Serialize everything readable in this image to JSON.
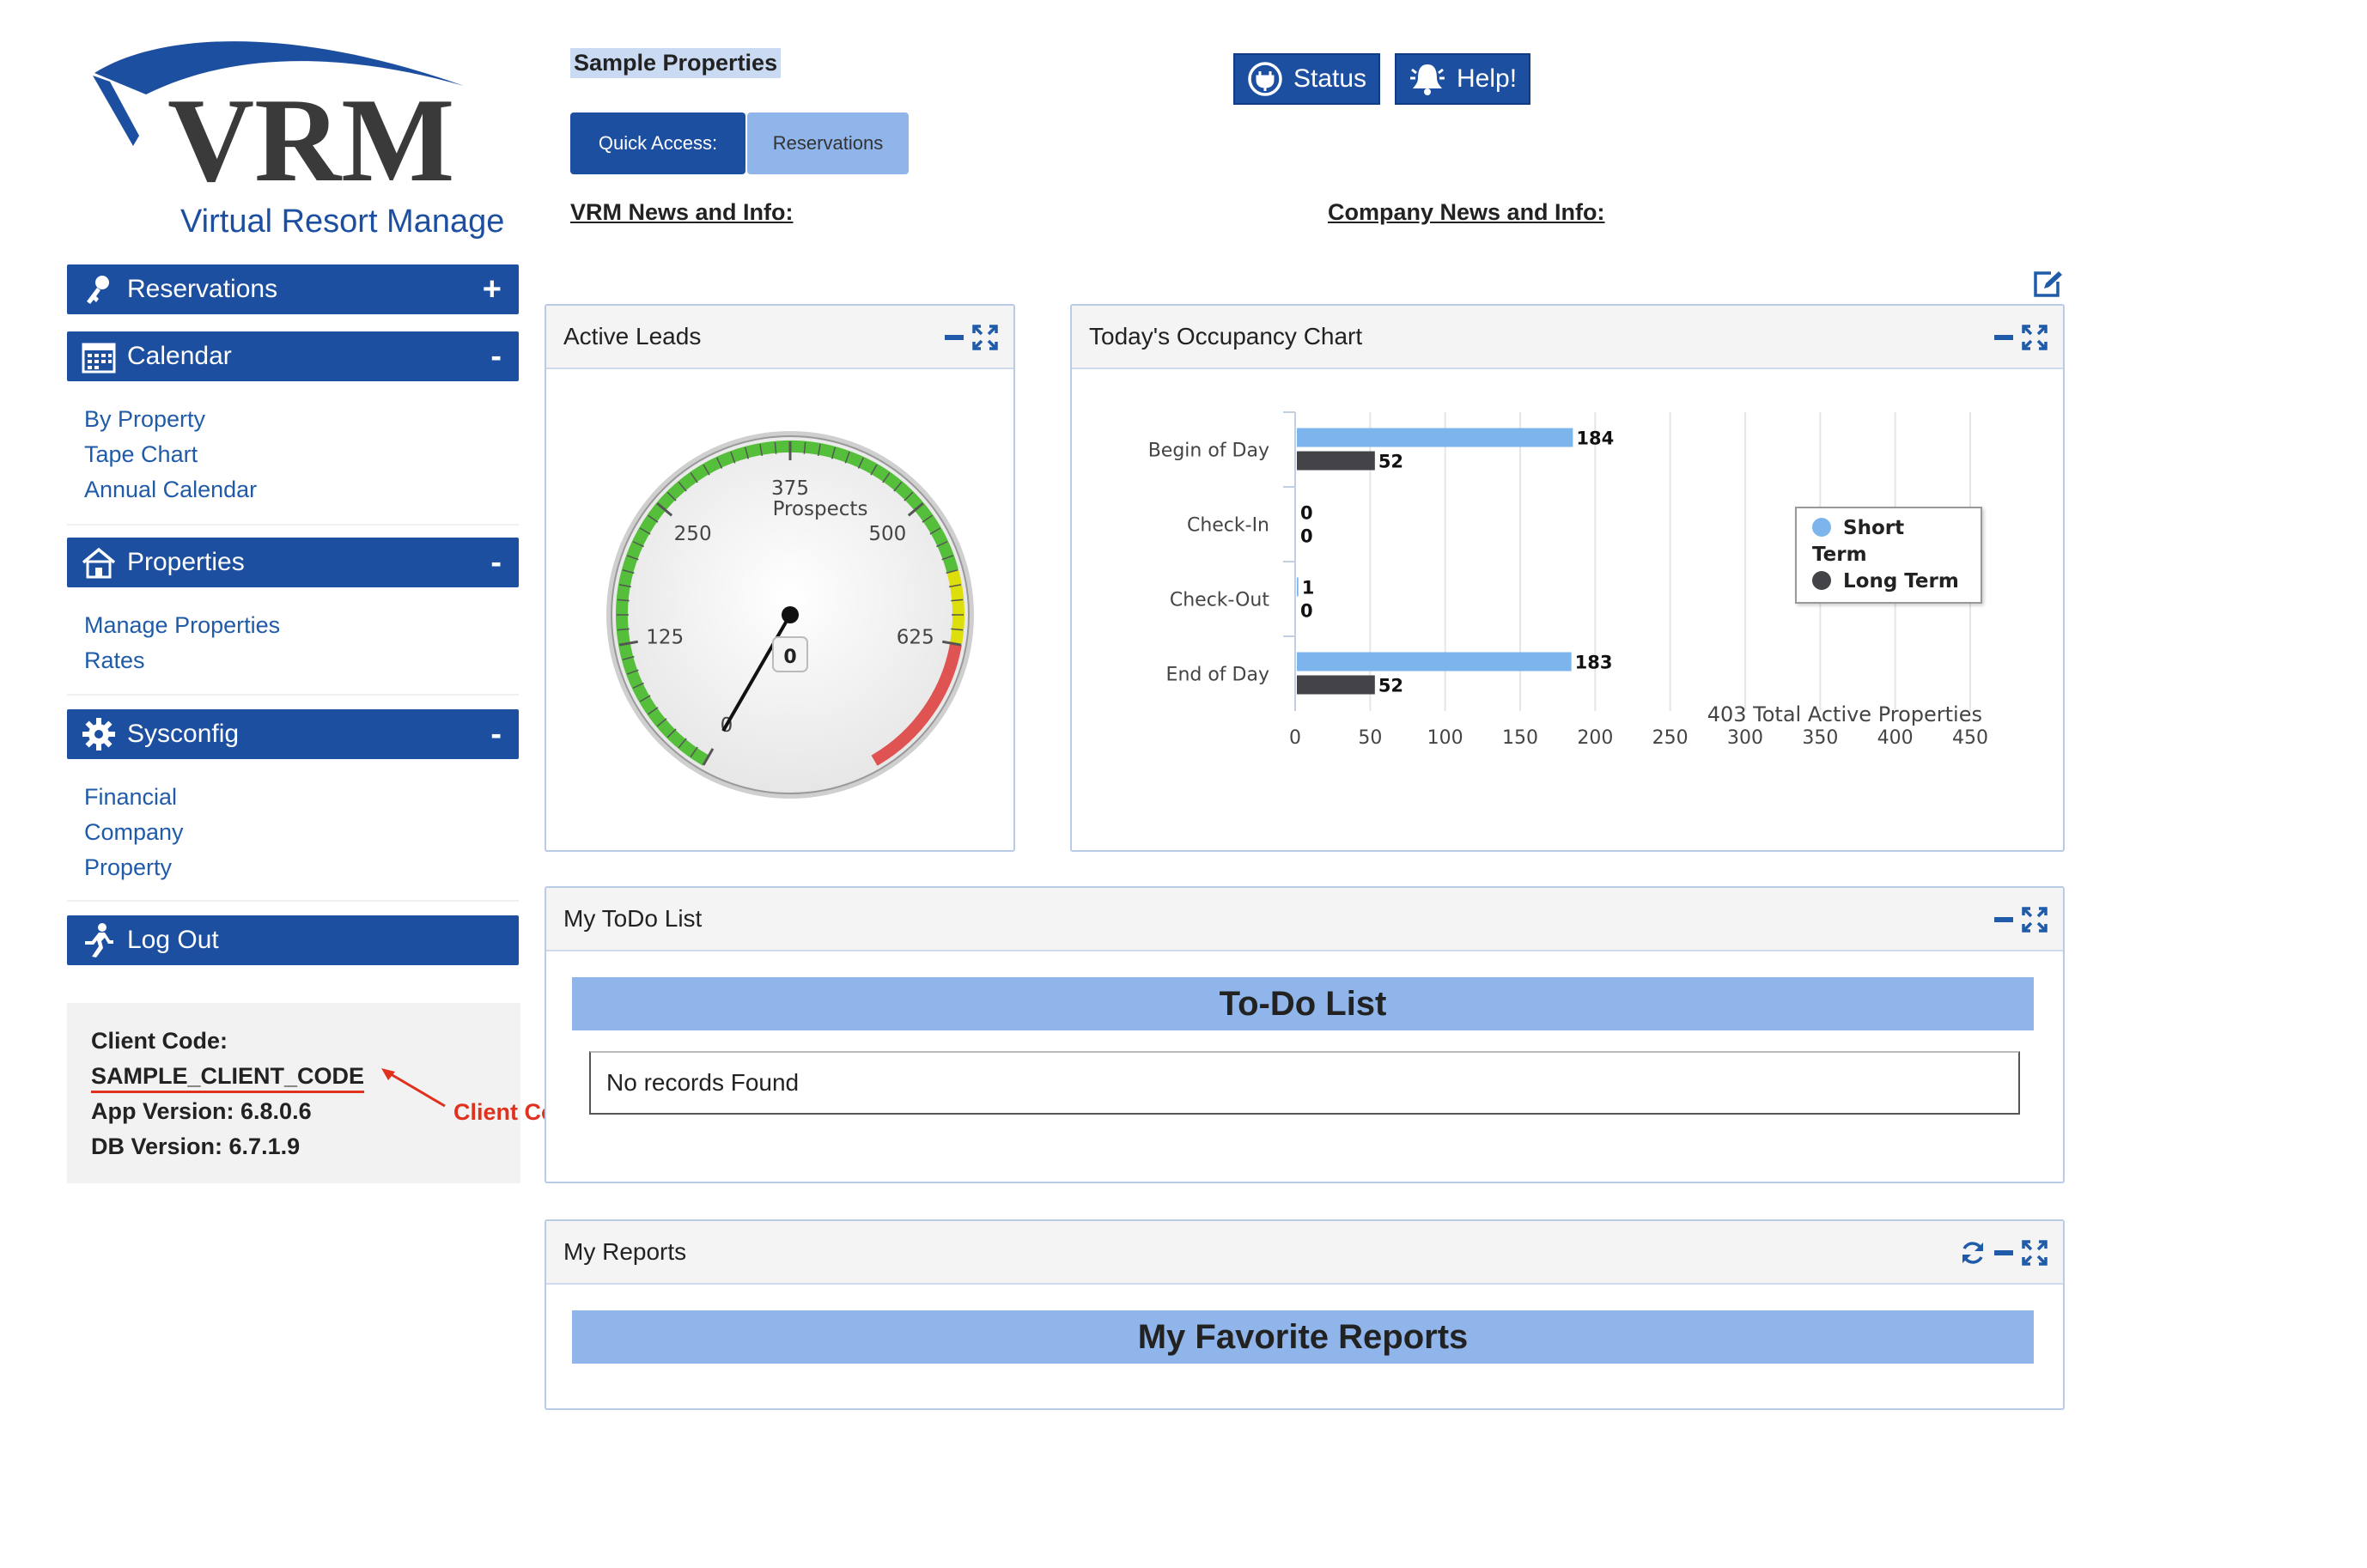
{
  "logo": {
    "brand": "VRM",
    "tagline": "Virtual Resort Manager"
  },
  "header": {
    "company_name": "Sample Properties",
    "status_label": "Status",
    "help_label": "Help!",
    "quick_access_label": "Quick Access:",
    "reservations_label": "Reservations",
    "vrm_news": "VRM News and Info:",
    "company_news": "Company News and Info:"
  },
  "sidebar": {
    "reservations": {
      "label": "Reservations",
      "toggle": "+"
    },
    "calendar": {
      "label": "Calendar",
      "toggle": "-",
      "items": [
        "By Property",
        "Tape Chart",
        "Annual Calendar"
      ]
    },
    "properties": {
      "label": "Properties",
      "toggle": "-",
      "items": [
        "Manage Properties",
        "Rates"
      ]
    },
    "sysconfig": {
      "label": "Sysconfig",
      "toggle": "-",
      "items": [
        "Financial",
        "Company",
        "Property"
      ]
    },
    "logout": {
      "label": "Log Out"
    }
  },
  "client_info": {
    "client_code_label": "Client Code:",
    "client_code": "SAMPLE_CLIENT_CODE",
    "app_version": "App Version: 6.8.0.6",
    "db_version": "DB Version: 6.7.1.9",
    "annotation": "Client Code"
  },
  "active_leads": {
    "title": "Active Leads",
    "gauge_label": "Prospects",
    "value": 0,
    "max": 750,
    "ticks": [
      "0",
      "125",
      "250",
      "375",
      "500",
      "625"
    ]
  },
  "occupancy": {
    "title": "Today's Occupancy Chart",
    "footer": "403 Total Active Properties"
  },
  "chart_data": {
    "type": "bar",
    "orientation": "horizontal",
    "title": "Today's Occupancy Chart",
    "categories": [
      "Begin of Day",
      "Check-In",
      "Check-Out",
      "End of Day"
    ],
    "series": [
      {
        "name": "Short Term",
        "values": [
          184,
          0,
          1,
          183
        ],
        "color": "#7cb5ec"
      },
      {
        "name": "Long Term",
        "values": [
          52,
          0,
          0,
          52
        ],
        "color": "#434348"
      }
    ],
    "xlim": [
      0,
      450
    ],
    "xticks": [
      0,
      50,
      100,
      150,
      200,
      250,
      300,
      350,
      400,
      450
    ],
    "xlabel": "403 Total Active Properties",
    "legend_position": "right",
    "grid": true
  },
  "todo": {
    "title": "My ToDo List",
    "banner": "To-Do List",
    "empty": "No records Found"
  },
  "reports": {
    "title": "My Reports",
    "banner": "My Favorite Reports"
  },
  "colors": {
    "primary": "#1d4fa0",
    "link": "#1f5ba8",
    "banner": "#8fb5ea",
    "accent_red": "#e0301e"
  }
}
